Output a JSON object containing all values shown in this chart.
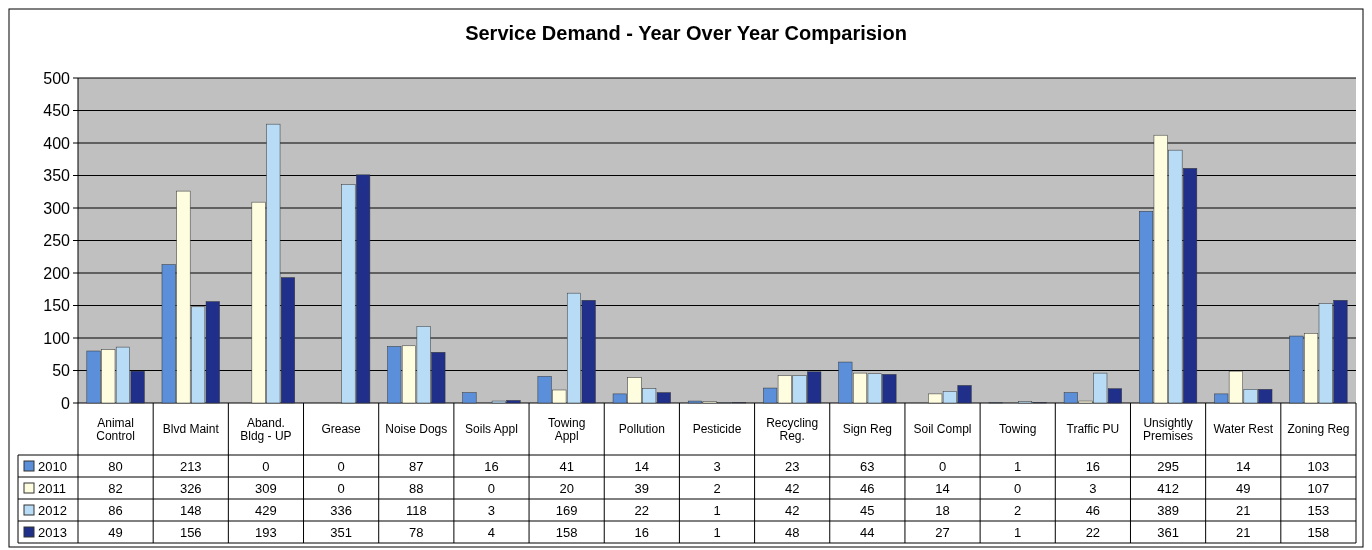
{
  "chart_data": {
    "type": "bar",
    "title": "Service Demand - Year Over Year Comparision",
    "categories": [
      "Animal Control",
      "Blvd Maint",
      "Aband. Bldg - UP",
      "Grease",
      "Noise Dogs",
      "Soils Appl",
      "Towing Appl",
      "Pollution",
      "Pesticide",
      "Recycling Reg.",
      "Sign Reg",
      "Soil Compl",
      "Towing",
      "Traffic PU",
      "Unsightly Premises",
      "Water Rest",
      "Zoning Reg"
    ],
    "series": [
      {
        "name": "2010",
        "color": "#5b8fd9",
        "values": [
          80,
          213,
          0,
          0,
          87,
          16,
          41,
          14,
          3,
          23,
          63,
          0,
          1,
          16,
          295,
          14,
          103
        ]
      },
      {
        "name": "2011",
        "color": "#fffde0",
        "values": [
          82,
          326,
          309,
          0,
          88,
          0,
          20,
          39,
          2,
          42,
          46,
          14,
          0,
          3,
          412,
          49,
          107
        ]
      },
      {
        "name": "2012",
        "color": "#b8dcf5",
        "values": [
          86,
          148,
          429,
          336,
          118,
          3,
          169,
          22,
          1,
          42,
          45,
          18,
          2,
          46,
          389,
          21,
          153
        ]
      },
      {
        "name": "2013",
        "color": "#1f2f8a",
        "values": [
          49,
          156,
          193,
          351,
          78,
          4,
          158,
          16,
          1,
          48,
          44,
          27,
          1,
          22,
          361,
          21,
          158
        ]
      }
    ],
    "ylim": [
      0,
      500
    ],
    "yticks": [
      0,
      50,
      100,
      150,
      200,
      250,
      300,
      350,
      400,
      450,
      500
    ],
    "grid": "y",
    "legend": "bottom",
    "data_labels": true
  }
}
